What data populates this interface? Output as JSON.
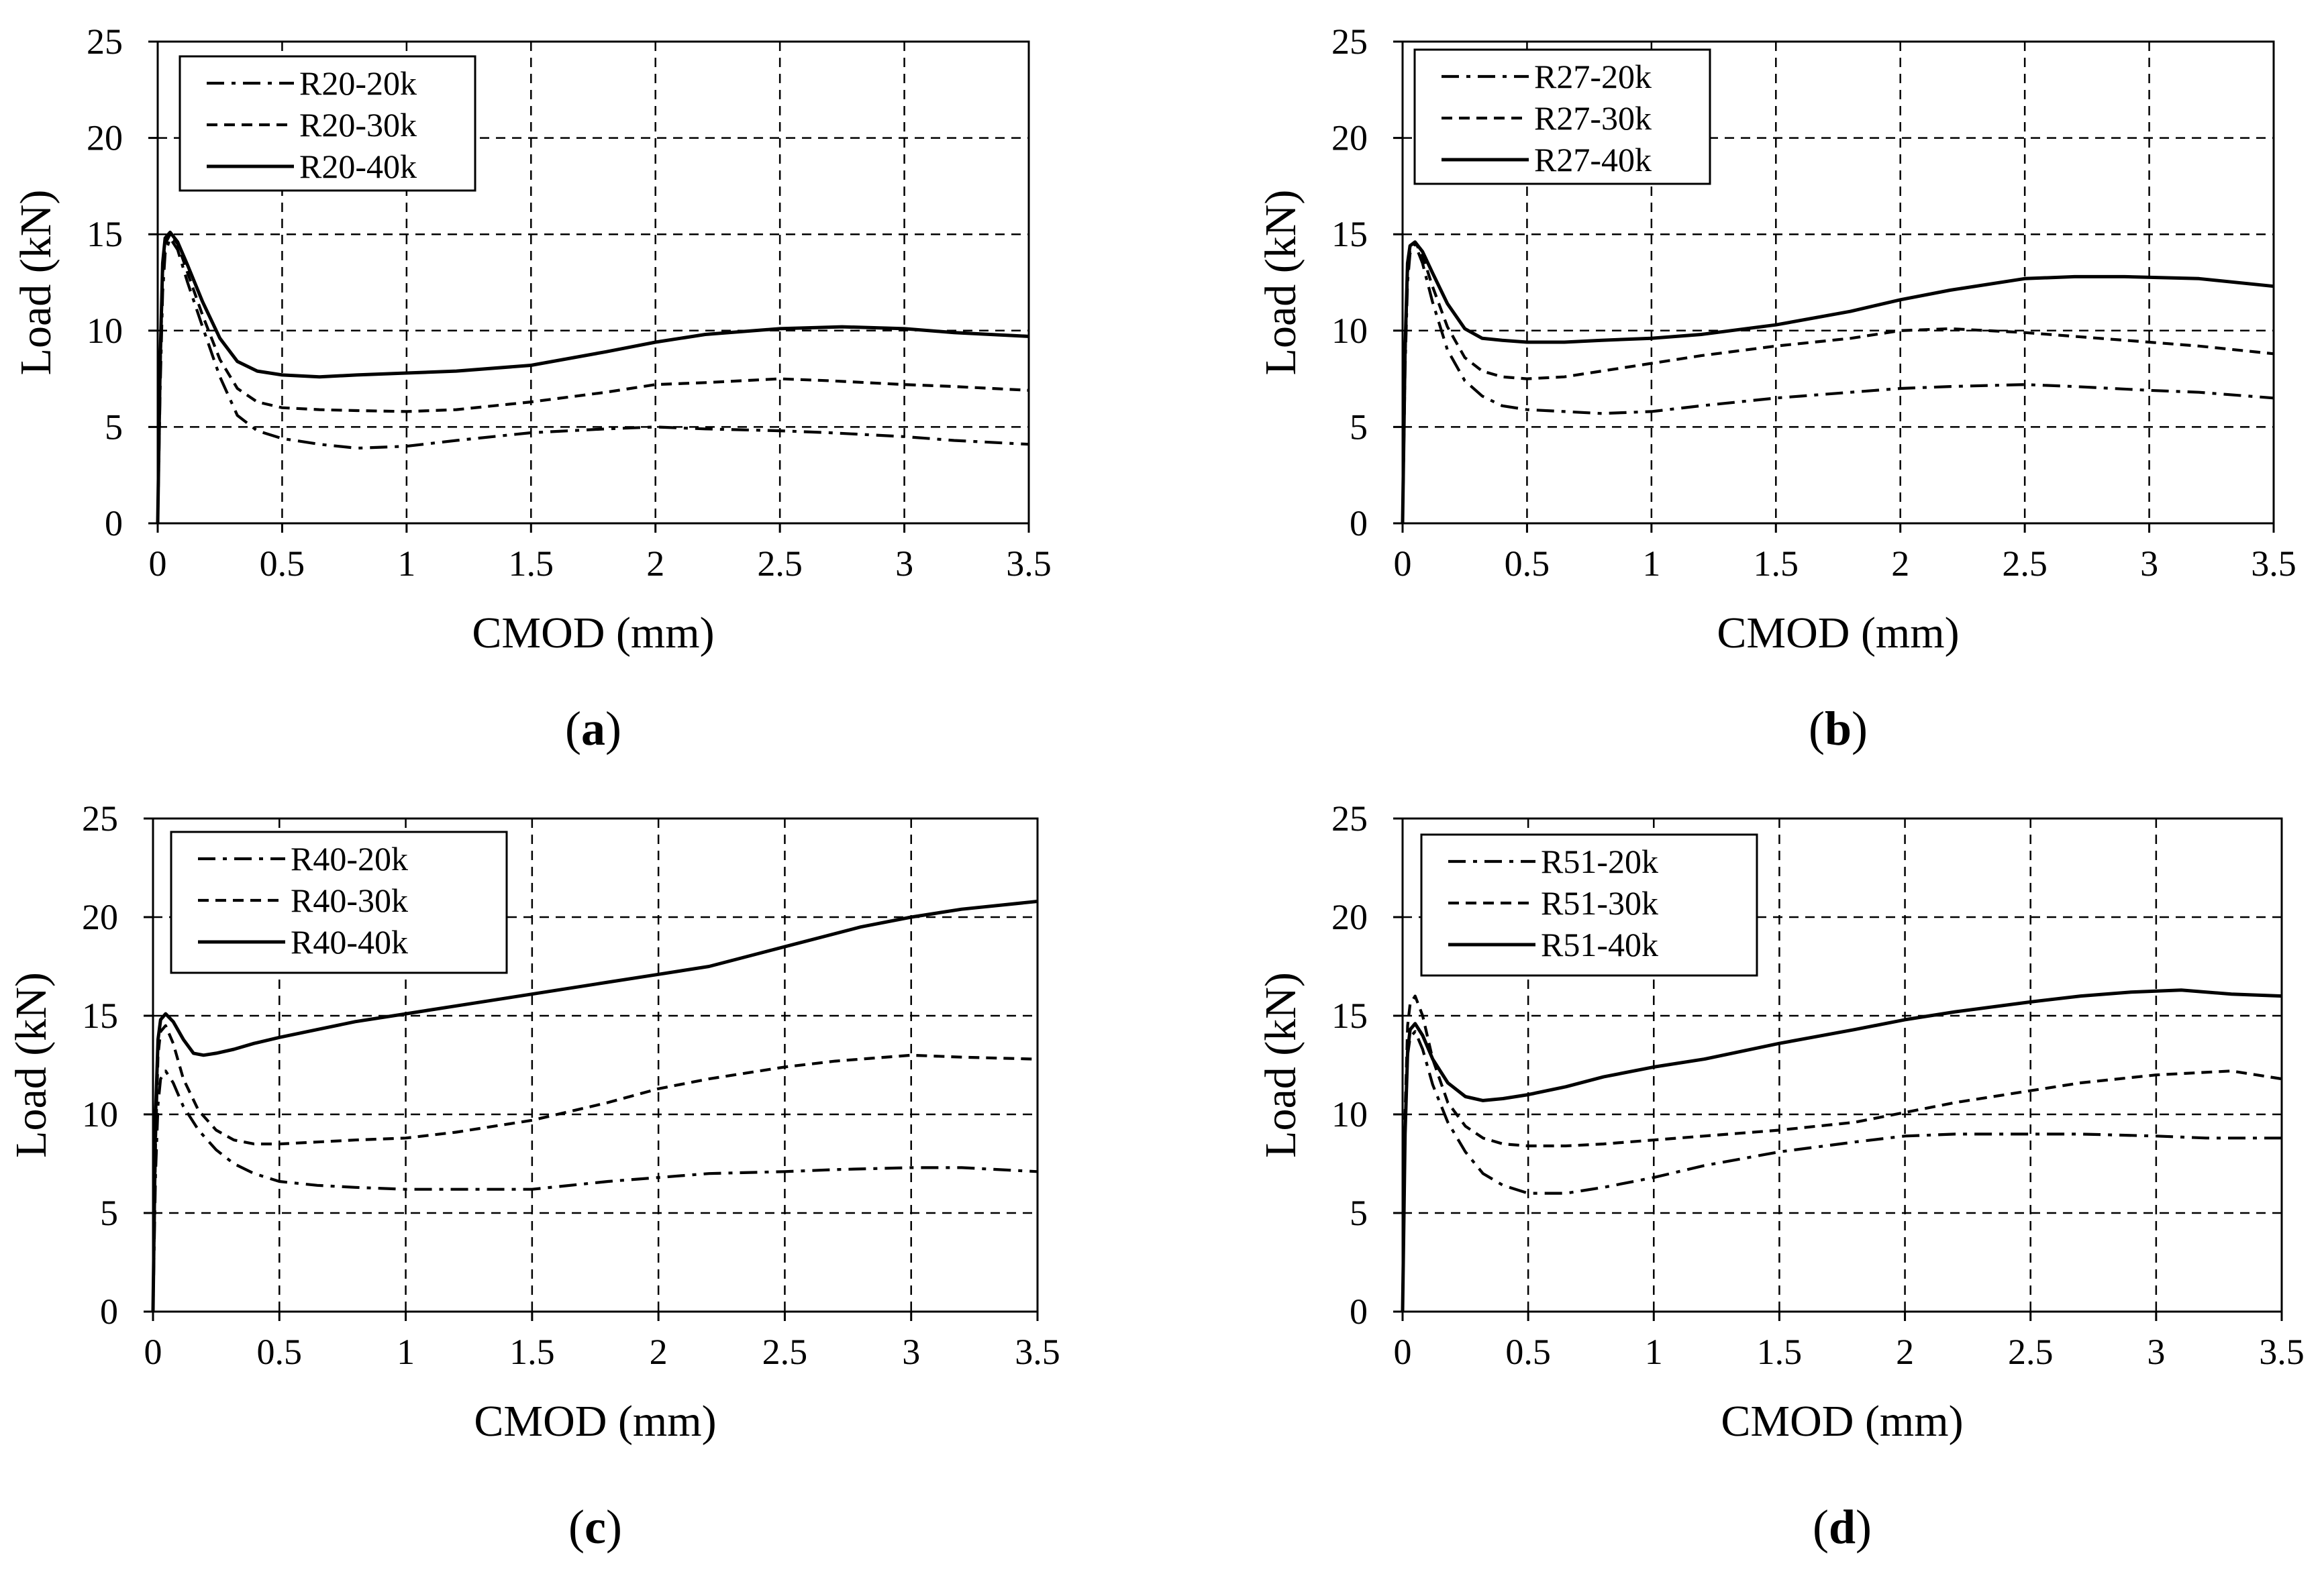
{
  "chart_data": [
    {
      "type": "line",
      "panel": "a",
      "caption_letter": "a",
      "xlabel": "CMOD (mm)",
      "ylabel": "Load (kN)",
      "xlim": [
        0,
        3.5
      ],
      "ylim": [
        0,
        25
      ],
      "xticks": [
        "0",
        "0.5",
        "1",
        "1.5",
        "2",
        "2.5",
        "3",
        "3.5"
      ],
      "yticks": [
        "0",
        "5",
        "10",
        "15",
        "20",
        "25"
      ],
      "grid": true,
      "legend_position": "top-left",
      "series": [
        {
          "name": "R20-20k",
          "style": "dashdot",
          "x": [
            0,
            0.01,
            0.02,
            0.03,
            0.05,
            0.08,
            0.12,
            0.18,
            0.25,
            0.32,
            0.4,
            0.5,
            0.65,
            0.8,
            1.0,
            1.2,
            1.5,
            1.8,
            2.0,
            2.2,
            2.5,
            2.7,
            3.0,
            3.2,
            3.5
          ],
          "y": [
            0,
            7,
            12,
            14,
            14.8,
            14.2,
            12.5,
            10.2,
            7.6,
            5.6,
            4.8,
            4.4,
            4.1,
            3.9,
            4.0,
            4.3,
            4.7,
            4.9,
            5.0,
            4.9,
            4.8,
            4.7,
            4.5,
            4.3,
            4.1
          ]
        },
        {
          "name": "R20-30k",
          "style": "dashed",
          "x": [
            0,
            0.01,
            0.02,
            0.03,
            0.05,
            0.08,
            0.12,
            0.18,
            0.25,
            0.32,
            0.4,
            0.5,
            0.65,
            0.8,
            1.0,
            1.2,
            1.5,
            1.8,
            2.0,
            2.2,
            2.5,
            2.7,
            3.0,
            3.2,
            3.5
          ],
          "y": [
            0,
            8,
            13,
            14.5,
            15,
            14.5,
            13,
            10.8,
            8.5,
            7,
            6.3,
            6.0,
            5.9,
            5.85,
            5.8,
            5.9,
            6.3,
            6.8,
            7.2,
            7.3,
            7.5,
            7.4,
            7.2,
            7.1,
            6.9
          ]
        },
        {
          "name": "R20-40k",
          "style": "solid",
          "x": [
            0,
            0.01,
            0.02,
            0.03,
            0.05,
            0.08,
            0.12,
            0.18,
            0.25,
            0.32,
            0.4,
            0.5,
            0.65,
            0.8,
            1.0,
            1.2,
            1.5,
            1.8,
            2.0,
            2.2,
            2.5,
            2.75,
            3.0,
            3.2,
            3.5
          ],
          "y": [
            0,
            8.5,
            13.5,
            14.8,
            15.1,
            14.6,
            13.4,
            11.5,
            9.6,
            8.4,
            7.9,
            7.7,
            7.6,
            7.7,
            7.8,
            7.9,
            8.2,
            8.9,
            9.4,
            9.8,
            10.1,
            10.2,
            10.1,
            9.9,
            9.7
          ]
        }
      ]
    },
    {
      "type": "line",
      "panel": "b",
      "caption_letter": "b",
      "xlabel": "CMOD (mm)",
      "ylabel": "Load (kN)",
      "xlim": [
        0,
        3.5
      ],
      "ylim": [
        0,
        25
      ],
      "xticks": [
        "0",
        "0.5",
        "1",
        "1.5",
        "2",
        "2.5",
        "3",
        "3.5"
      ],
      "yticks": [
        "0",
        "5",
        "10",
        "15",
        "20",
        "25"
      ],
      "grid": true,
      "legend_position": "top-left",
      "series": [
        {
          "name": "R27-20k",
          "style": "dashdot",
          "x": [
            0,
            0.01,
            0.02,
            0.03,
            0.05,
            0.08,
            0.12,
            0.18,
            0.25,
            0.32,
            0.4,
            0.5,
            0.65,
            0.8,
            1.0,
            1.2,
            1.5,
            1.8,
            2.0,
            2.2,
            2.5,
            2.7,
            3.0,
            3.2,
            3.5
          ],
          "y": [
            0,
            8,
            12.5,
            14,
            14.5,
            13.5,
            11.5,
            9,
            7.4,
            6.6,
            6.1,
            5.9,
            5.8,
            5.7,
            5.8,
            6.1,
            6.5,
            6.8,
            7.0,
            7.1,
            7.2,
            7.1,
            6.9,
            6.8,
            6.5
          ]
        },
        {
          "name": "R27-30k",
          "style": "dashed",
          "x": [
            0,
            0.01,
            0.02,
            0.03,
            0.05,
            0.08,
            0.12,
            0.18,
            0.25,
            0.32,
            0.4,
            0.5,
            0.65,
            0.8,
            1.0,
            1.2,
            1.5,
            1.8,
            2.0,
            2.2,
            2.5,
            2.7,
            3.0,
            3.2,
            3.5
          ],
          "y": [
            0,
            8.5,
            13,
            14.2,
            14.6,
            13.9,
            12.3,
            10.2,
            8.6,
            7.9,
            7.6,
            7.5,
            7.6,
            7.9,
            8.3,
            8.7,
            9.2,
            9.6,
            10.0,
            10.1,
            9.9,
            9.7,
            9.4,
            9.2,
            8.8
          ]
        },
        {
          "name": "R27-40k",
          "style": "solid",
          "x": [
            0,
            0.01,
            0.02,
            0.03,
            0.05,
            0.08,
            0.12,
            0.18,
            0.25,
            0.32,
            0.4,
            0.5,
            0.65,
            0.8,
            1.0,
            1.2,
            1.5,
            1.8,
            2.0,
            2.2,
            2.5,
            2.7,
            2.9,
            3.2,
            3.5
          ],
          "y": [
            0,
            9,
            13.5,
            14.4,
            14.6,
            14.1,
            13,
            11.4,
            10.1,
            9.6,
            9.5,
            9.4,
            9.4,
            9.5,
            9.6,
            9.8,
            10.3,
            11.0,
            11.6,
            12.1,
            12.7,
            12.8,
            12.8,
            12.7,
            12.3
          ]
        }
      ]
    },
    {
      "type": "line",
      "panel": "c",
      "caption_letter": "c",
      "xlabel": "CMOD (mm)",
      "ylabel": "Load (kN)",
      "xlim": [
        0,
        3.5
      ],
      "ylim": [
        0,
        25
      ],
      "xticks": [
        "0",
        "0.5",
        "1",
        "1.5",
        "2",
        "2.5",
        "3",
        "3.5"
      ],
      "yticks": [
        "0",
        "5",
        "10",
        "15",
        "20",
        "25"
      ],
      "grid": true,
      "legend_position": "top-left",
      "series": [
        {
          "name": "R40-20k",
          "style": "dashdot",
          "x": [
            0,
            0.01,
            0.02,
            0.03,
            0.05,
            0.08,
            0.12,
            0.18,
            0.25,
            0.32,
            0.4,
            0.5,
            0.65,
            0.8,
            1.0,
            1.2,
            1.5,
            1.8,
            2.0,
            2.2,
            2.5,
            2.7,
            3.0,
            3.2,
            3.5
          ],
          "y": [
            0,
            7,
            10.5,
            11.8,
            12.2,
            11.6,
            10.4,
            9.2,
            8.2,
            7.5,
            7.0,
            6.6,
            6.4,
            6.3,
            6.2,
            6.2,
            6.2,
            6.6,
            6.8,
            7.0,
            7.1,
            7.2,
            7.3,
            7.3,
            7.1
          ]
        },
        {
          "name": "R40-30k",
          "style": "dashed",
          "x": [
            0,
            0.01,
            0.02,
            0.03,
            0.05,
            0.08,
            0.12,
            0.18,
            0.25,
            0.32,
            0.4,
            0.5,
            0.65,
            0.8,
            1.0,
            1.2,
            1.5,
            1.8,
            2.0,
            2.2,
            2.5,
            2.7,
            3.0,
            3.2,
            3.5
          ],
          "y": [
            0,
            8.5,
            13,
            14.2,
            14.5,
            13.6,
            11.8,
            10.2,
            9.2,
            8.7,
            8.5,
            8.5,
            8.6,
            8.7,
            8.8,
            9.1,
            9.7,
            10.6,
            11.3,
            11.8,
            12.4,
            12.7,
            13.0,
            12.9,
            12.8
          ]
        },
        {
          "name": "R40-40k",
          "style": "solid",
          "x": [
            0,
            0.01,
            0.02,
            0.03,
            0.05,
            0.08,
            0.12,
            0.16,
            0.2,
            0.25,
            0.32,
            0.4,
            0.5,
            0.65,
            0.8,
            1.0,
            1.2,
            1.5,
            1.8,
            2.0,
            2.2,
            2.5,
            2.8,
            3.0,
            3.2,
            3.5
          ],
          "y": [
            0,
            10,
            13.8,
            14.8,
            15.1,
            14.7,
            13.8,
            13.1,
            13.0,
            13.1,
            13.3,
            13.6,
            13.9,
            14.3,
            14.7,
            15.1,
            15.5,
            16.1,
            16.7,
            17.1,
            17.5,
            18.5,
            19.5,
            20.0,
            20.4,
            20.8
          ]
        }
      ]
    },
    {
      "type": "line",
      "panel": "d",
      "caption_letter": "d",
      "xlabel": "CMOD (mm)",
      "ylabel": "Load (kN)",
      "xlim": [
        0,
        3.5
      ],
      "ylim": [
        0,
        25
      ],
      "xticks": [
        "0",
        "0.5",
        "1",
        "1.5",
        "2",
        "2.5",
        "3",
        "3.5"
      ],
      "yticks": [
        "0",
        "5",
        "10",
        "15",
        "20",
        "25"
      ],
      "grid": true,
      "legend_position": "top-left",
      "series": [
        {
          "name": "R51-20k",
          "style": "dashdot",
          "x": [
            0,
            0.01,
            0.02,
            0.03,
            0.05,
            0.08,
            0.12,
            0.18,
            0.25,
            0.32,
            0.4,
            0.5,
            0.65,
            0.8,
            1.0,
            1.2,
            1.5,
            1.8,
            2.0,
            2.2,
            2.5,
            2.7,
            3.0,
            3.2,
            3.5
          ],
          "y": [
            0,
            9,
            13,
            13.9,
            14.2,
            13.3,
            11.5,
            9.6,
            8.1,
            7.0,
            6.4,
            6.0,
            6.0,
            6.3,
            6.8,
            7.4,
            8.1,
            8.6,
            8.9,
            9.0,
            9.0,
            9.0,
            8.9,
            8.8,
            8.8
          ]
        },
        {
          "name": "R51-30k",
          "style": "dashed",
          "x": [
            0,
            0.01,
            0.02,
            0.03,
            0.05,
            0.08,
            0.12,
            0.18,
            0.25,
            0.32,
            0.4,
            0.5,
            0.65,
            0.8,
            1.0,
            1.2,
            1.5,
            1.8,
            2.0,
            2.2,
            2.5,
            2.7,
            3.0,
            3.3,
            3.5
          ],
          "y": [
            0,
            10,
            14.5,
            15.6,
            16.0,
            15.0,
            12.8,
            10.6,
            9.4,
            8.8,
            8.5,
            8.4,
            8.4,
            8.5,
            8.7,
            8.9,
            9.2,
            9.6,
            10.1,
            10.6,
            11.2,
            11.6,
            12.0,
            12.2,
            11.8
          ]
        },
        {
          "name": "R51-40k",
          "style": "solid",
          "x": [
            0,
            0.01,
            0.02,
            0.03,
            0.05,
            0.08,
            0.12,
            0.18,
            0.25,
            0.32,
            0.4,
            0.5,
            0.65,
            0.8,
            1.0,
            1.2,
            1.5,
            1.8,
            2.0,
            2.2,
            2.5,
            2.7,
            2.9,
            3.1,
            3.3,
            3.5
          ],
          "y": [
            0,
            9,
            13.2,
            14.3,
            14.6,
            14.0,
            12.8,
            11.6,
            10.9,
            10.7,
            10.8,
            11.0,
            11.4,
            11.9,
            12.4,
            12.8,
            13.6,
            14.3,
            14.8,
            15.2,
            15.7,
            16.0,
            16.2,
            16.3,
            16.1,
            16.0
          ]
        }
      ]
    }
  ]
}
